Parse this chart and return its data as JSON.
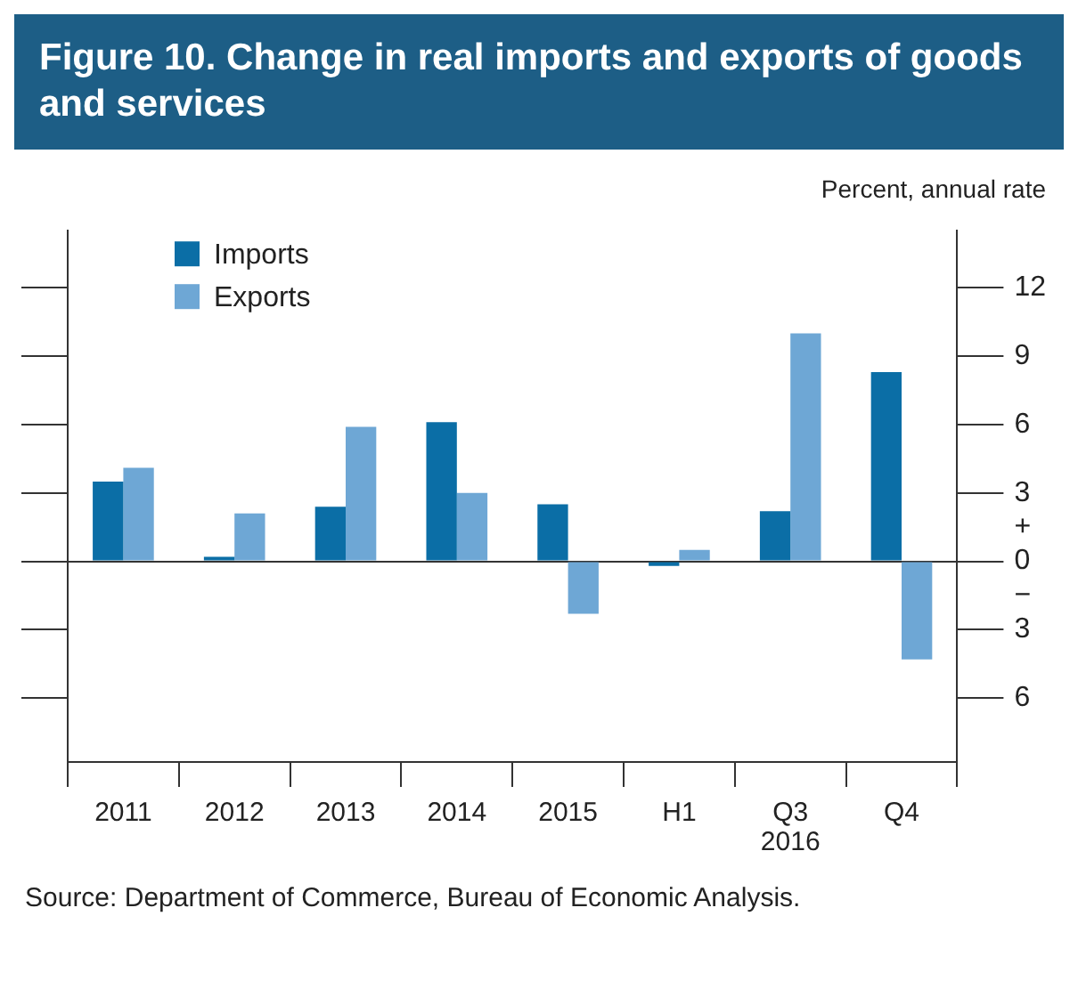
{
  "chart_data": {
    "type": "bar",
    "title": "Figure 10. Change in real imports and exports of goods and services",
    "ylabel": "Percent, annual rate",
    "categories": [
      "2011",
      "2012",
      "2013",
      "2014",
      "2015",
      "H1",
      "Q3",
      "Q4"
    ],
    "series": [
      {
        "name": "Imports",
        "color": "#0b6ea6",
        "values": [
          3.5,
          0.2,
          2.4,
          6.1,
          2.5,
          -0.2,
          2.2,
          8.3
        ]
      },
      {
        "name": "Exports",
        "color": "#6ea7d5",
        "values": [
          4.1,
          2.1,
          5.9,
          3.0,
          -2.3,
          0.5,
          10.0,
          -4.3
        ]
      }
    ],
    "ylim": [
      -8.8,
      14.5
    ],
    "yticks": [
      {
        "value": -6,
        "label": "6"
      },
      {
        "value": -3,
        "label": "3"
      },
      {
        "value": 0,
        "label": "+\n0\n−"
      },
      3,
      6,
      9,
      12
    ],
    "legend": "top left",
    "annotations": [
      "2016",
      "Source: Department of Commerce, Bureau of Economic Analysis."
    ]
  }
}
